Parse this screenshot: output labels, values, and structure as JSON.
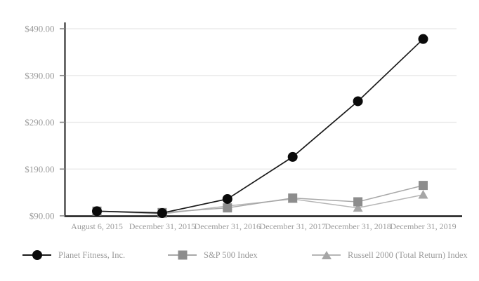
{
  "chart_data": {
    "type": "line",
    "title": "",
    "categories": [
      "August 6, 2015",
      "December 31, 2015",
      "December 31, 2016",
      "December 31, 2017",
      "December 31, 2018",
      "December 31, 2019"
    ],
    "series": [
      {
        "name": "Planet Fitness, Inc.",
        "marker": "circle",
        "marker_color": "#0a0a0a",
        "line_color": "#1a1a1a",
        "values": [
          100,
          96,
          126,
          216,
          335,
          468
        ]
      },
      {
        "name": "S&P 500 Index",
        "marker": "square",
        "marker_color": "#8d8d8d",
        "line_color": "#a8a8a8",
        "values": [
          100,
          97,
          107,
          128,
          120,
          155
        ]
      },
      {
        "name": "Russell 2000 (Total Return) Index",
        "marker": "triangle",
        "marker_color": "#a6a6a6",
        "line_color": "#b6b6b6",
        "values": [
          100,
          94,
          111,
          126,
          107,
          135
        ]
      }
    ],
    "y_tick_labels": [
      "$490.00",
      "$390.00",
      "$290.00",
      "$190.00",
      "$90.00"
    ],
    "y_tick_values": [
      490,
      390,
      290,
      190,
      90
    ],
    "ylim": [
      90,
      490
    ],
    "xlabel": "",
    "ylabel": "",
    "grid": "horizontal",
    "legend_position": "bottom",
    "axis_color": "#1a1a1a",
    "gridline_color": "#e8e8e8",
    "tick_color": "#8a8a8a",
    "tick_label_color": "#9b9b9b"
  }
}
